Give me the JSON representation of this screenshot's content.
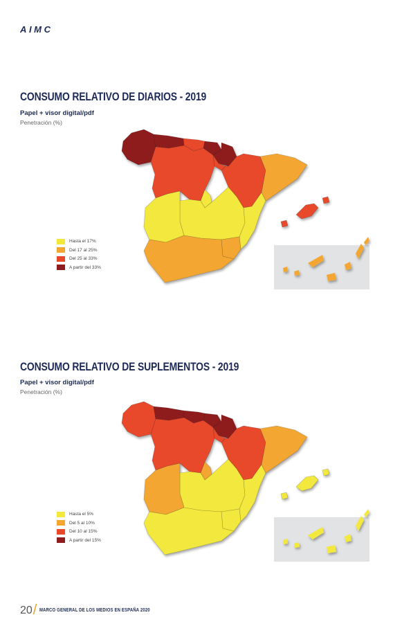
{
  "logo": {
    "text": "AIMC"
  },
  "maps": [
    {
      "title": "CONSUMO RELATIVO DE DIARIOS - 2019",
      "subtitle": "Papel + visor digital/pdf",
      "metric": "Penetración (%)",
      "legend": [
        "Hasta el 17%",
        "Del 17 al 25%",
        "Del 25 al 33%",
        "A partir del 33%"
      ],
      "regions": {
        "galicia": 3,
        "asturias": 3,
        "cantabria": 2,
        "pais_vasco": 3,
        "navarra": 3,
        "castilla_leon": 2,
        "la_rioja": 2,
        "aragon": 2,
        "cataluna": 1,
        "madrid": 0,
        "castilla_mancha": 0,
        "extremadura": 0,
        "valencia": 0,
        "murcia": 1,
        "andalucia": 1,
        "baleares": 2,
        "canarias": 1
      }
    },
    {
      "title": "CONSUMO RELATIVO DE SUPLEMENTOS - 2019",
      "subtitle": "Papel + visor digital/pdf",
      "metric": "Penetración (%)",
      "legend": [
        "Hasta el 5%",
        "Del 5 al 10%",
        "Del 10 al 15%",
        "A partir del 15%"
      ],
      "regions": {
        "galicia": 2,
        "asturias": 3,
        "cantabria": 3,
        "pais_vasco": 3,
        "navarra": 3,
        "castilla_leon": 2,
        "la_rioja": 2,
        "aragon": 2,
        "cataluna": 1,
        "madrid": 1,
        "castilla_mancha": 0,
        "extremadura": 1,
        "valencia": 0,
        "murcia": 0,
        "andalucia": 0,
        "baleares": 0,
        "canarias": 0
      }
    }
  ],
  "colors": [
    "#f3e83c",
    "#f3a731",
    "#e8492a",
    "#8e1c1e"
  ],
  "footer": {
    "page": "20",
    "text": "MARCO GENERAL DE LOS MEDIOS EN ESPAÑA 2020"
  }
}
